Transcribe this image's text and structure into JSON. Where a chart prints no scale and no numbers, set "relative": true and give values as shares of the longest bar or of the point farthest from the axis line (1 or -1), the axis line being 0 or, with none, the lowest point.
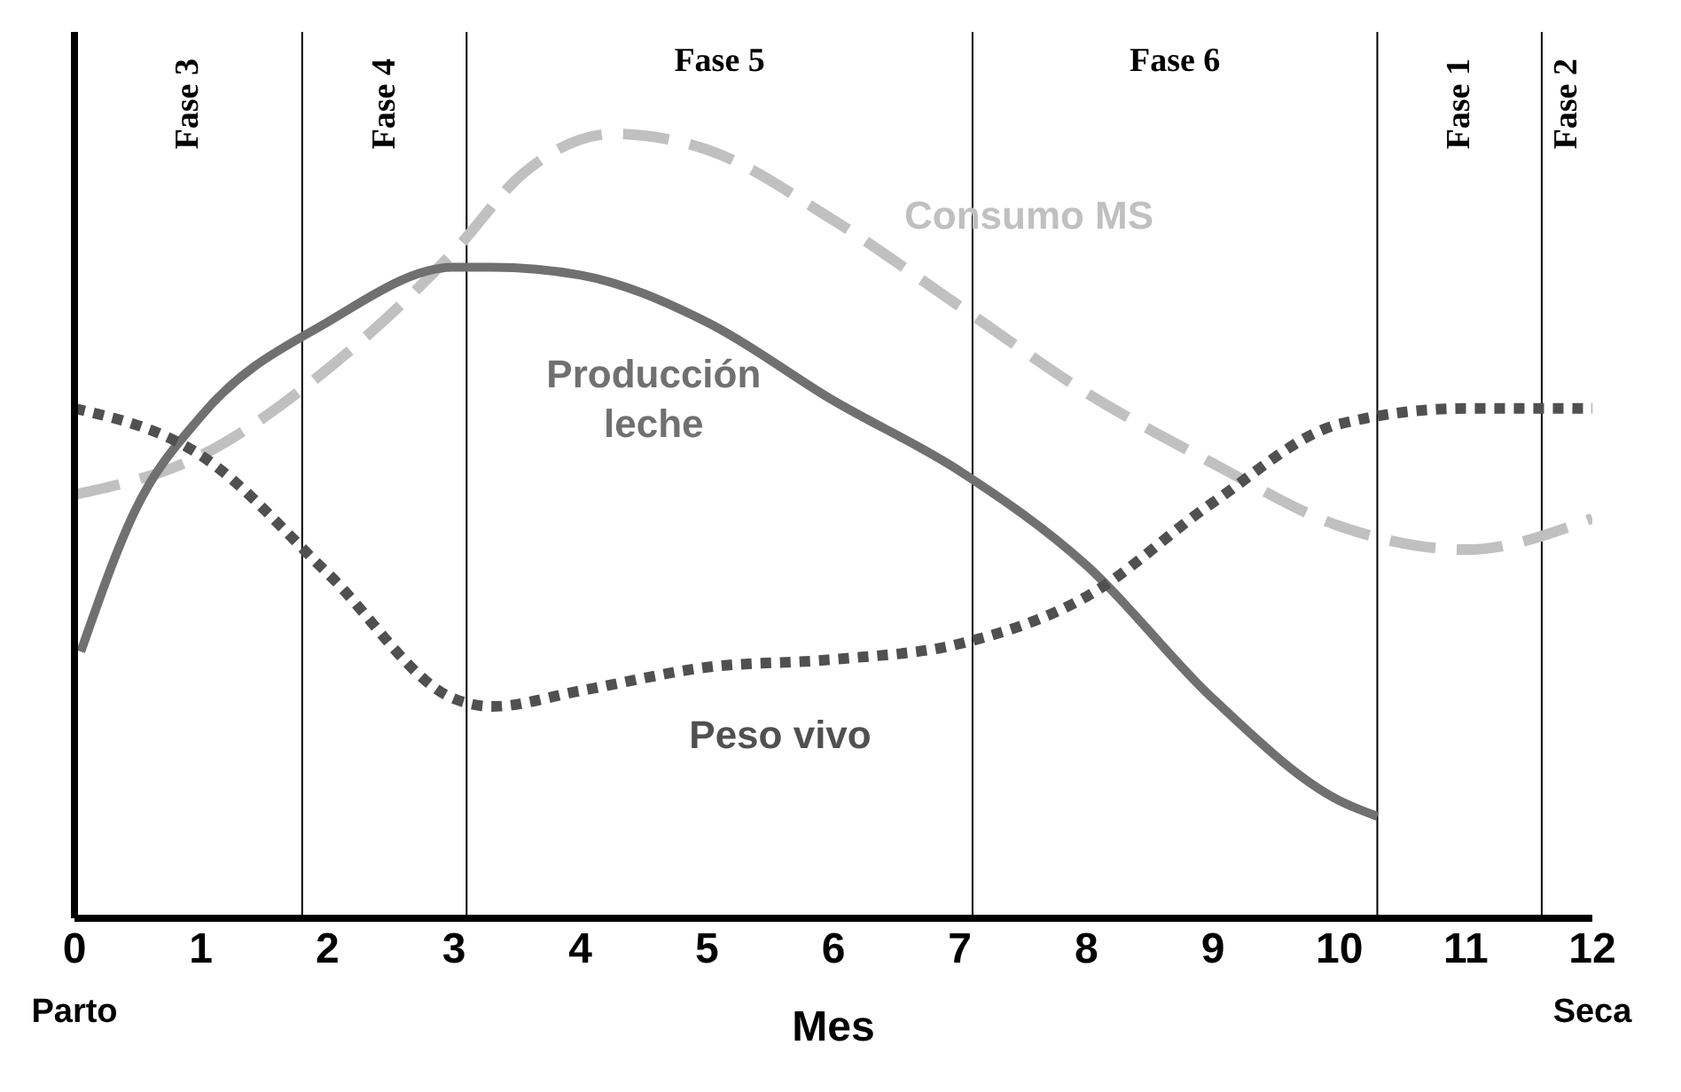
{
  "chart_data": {
    "type": "line",
    "relative": true,
    "xlabel": "Mes",
    "xlim": [
      0,
      12
    ],
    "xticks": [
      0,
      1,
      2,
      3,
      4,
      5,
      6,
      7,
      8,
      9,
      10,
      11,
      12
    ],
    "grid": false,
    "legend": false,
    "marker": "none",
    "series": [
      {
        "name": "Consumo MS",
        "color": "#c0c0c0",
        "line_style": "dashed",
        "x": [
          0,
          1,
          2,
          3,
          3.55,
          4.26,
          5,
          6,
          7,
          8,
          9,
          10,
          11,
          12
        ],
        "values": [
          0.54,
          0.59,
          0.7,
          0.85,
          0.95,
          1,
          0.98,
          0.89,
          0.78,
          0.67,
          0.58,
          0.5,
          0.47,
          0.51
        ]
      },
      {
        "name": "Producción leche",
        "color": "#707070",
        "line_style": "solid",
        "x": [
          0.05,
          0.48,
          1,
          2,
          3,
          3.3,
          4,
          5,
          6,
          7,
          8,
          9,
          10,
          10.3
        ],
        "values": [
          0.34,
          0.52,
          0.64,
          0.76,
          0.83,
          0.83,
          0.82,
          0.76,
          0.66,
          0.57,
          0.45,
          0.28,
          0.15,
          0.13
        ]
      },
      {
        "name": "Peso vivo",
        "color": "#505050",
        "line_style": "dotted",
        "x": [
          0,
          1,
          2,
          3,
          3.3,
          4,
          5,
          6,
          7,
          8,
          9,
          10,
          11,
          12
        ],
        "values": [
          0.65,
          0.59,
          0.44,
          0.28,
          0.27,
          0.29,
          0.32,
          0.33,
          0.35,
          0.41,
          0.53,
          0.63,
          0.65,
          0.65
        ]
      }
    ],
    "ref_lines": [
      {
        "axis": "x",
        "value": 1.8,
        "color": "#000000"
      },
      {
        "axis": "x",
        "value": 3.1,
        "color": "#000000"
      },
      {
        "axis": "x",
        "value": 7.1,
        "color": "#000000"
      },
      {
        "axis": "x",
        "value": 10.3,
        "color": "#000000"
      },
      {
        "axis": "x",
        "value": 11.6,
        "color": "#000000"
      }
    ],
    "annotations": [
      "Fase 3",
      "Fase 4",
      "Fase 5",
      "Fase 6",
      "Fase 1",
      "Fase 2",
      "Parto",
      "Seca"
    ]
  }
}
